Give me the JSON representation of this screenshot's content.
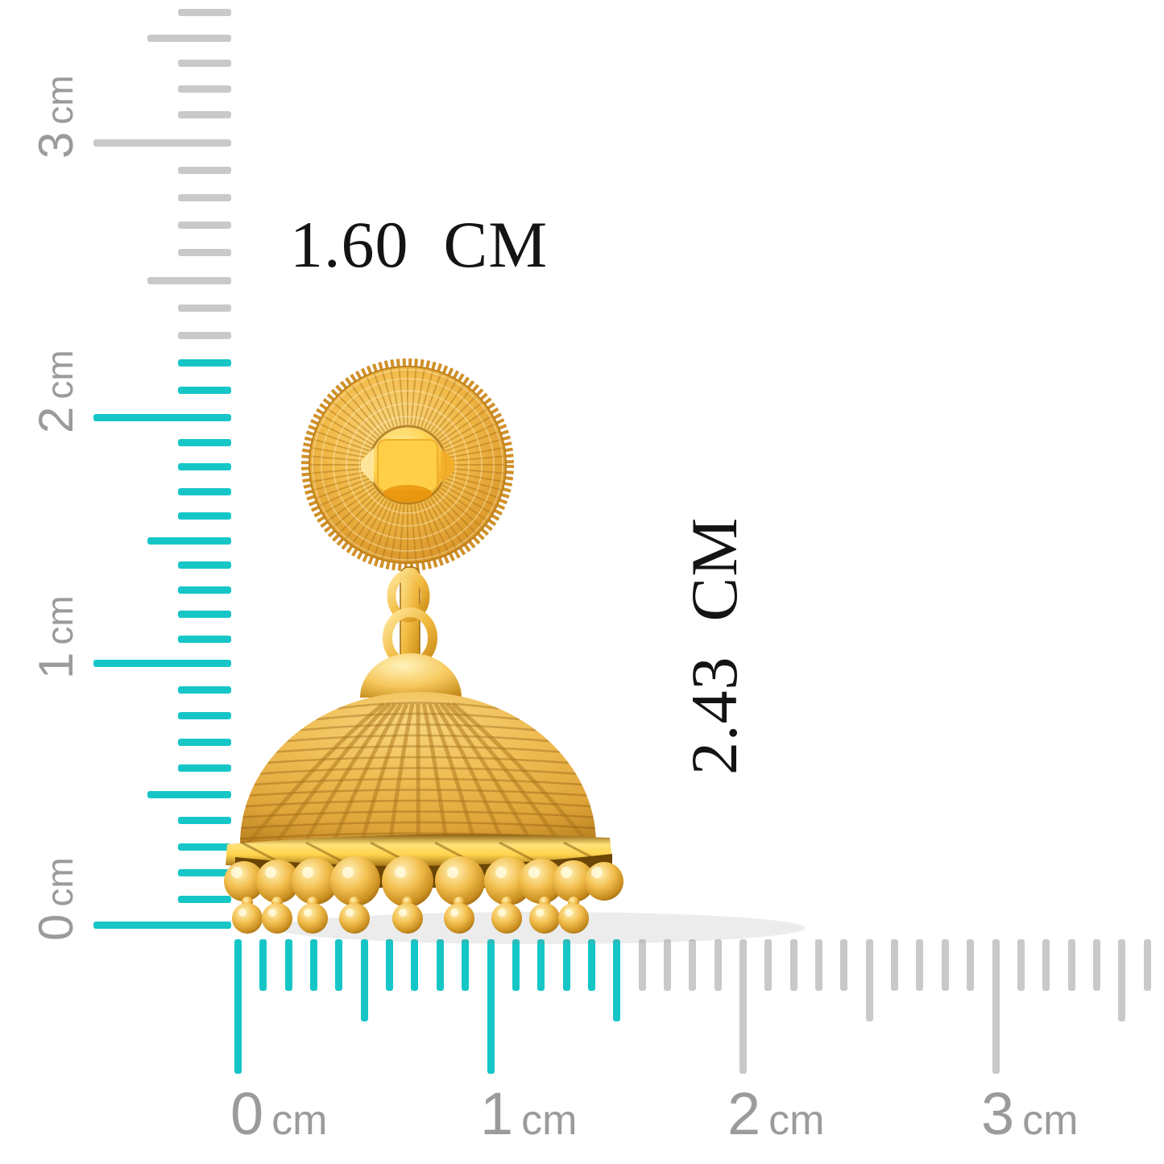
{
  "measurements": {
    "width_label": "1.60  CM",
    "height_label": "2.43  CM"
  },
  "rulers": {
    "unit": "cm",
    "vertical": {
      "labels": [
        {
          "digit": "3",
          "unit": "cm"
        },
        {
          "digit": "2",
          "unit": "cm"
        },
        {
          "digit": "1",
          "unit": "cm"
        },
        {
          "digit": "0",
          "unit": "cm"
        }
      ]
    },
    "horizontal": {
      "labels": [
        {
          "digit": "0",
          "unit": "cm"
        },
        {
          "digit": "1",
          "unit": "cm"
        },
        {
          "digit": "2",
          "unit": "cm"
        },
        {
          "digit": "3",
          "unit": "cm"
        }
      ]
    }
  },
  "colors": {
    "teal": "#16C6C7",
    "tick_gray": "#C9C9C9",
    "label_gray": "#9B9B9B",
    "text_black": "#141414",
    "gold_light": "#FFEFAF",
    "gold_mid": "#F1B946",
    "gold_deep": "#C9881B",
    "gold_dark": "#7A5208"
  }
}
